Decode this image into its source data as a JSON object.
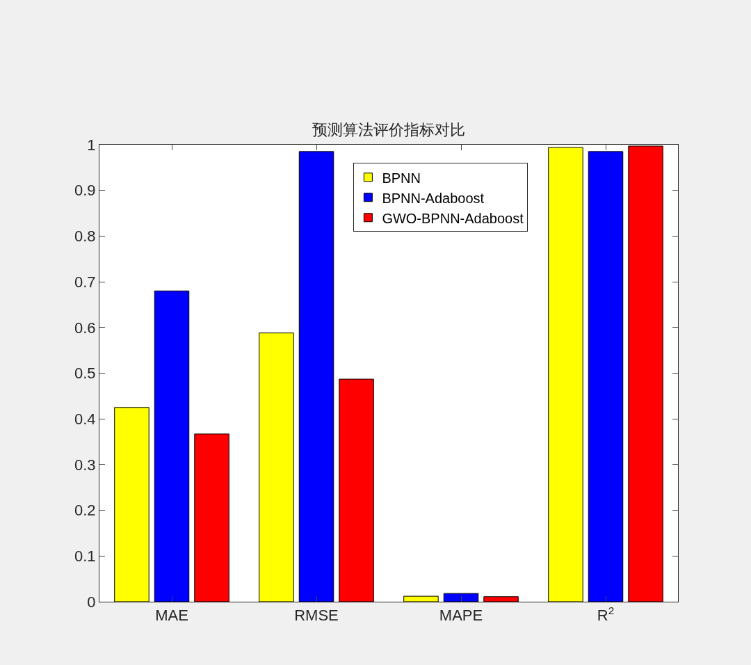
{
  "chart_data": {
    "type": "bar",
    "title": "预测算法评价指标对比",
    "categories": [
      "MAE",
      "RMSE",
      "MAPE",
      "R$^{2}$"
    ],
    "series": [
      {
        "name": "BPNN",
        "color": "#ffff00",
        "values": [
          0.425,
          0.588,
          0.012,
          0.994
        ]
      },
      {
        "name": "BPNN-Adaboost",
        "color": "#0000ff",
        "values": [
          0.68,
          0.985,
          0.018,
          0.985
        ]
      },
      {
        "name": "GWO-BPNN-Adaboost",
        "color": "#ff0000",
        "values": [
          0.367,
          0.487,
          0.011,
          0.997
        ]
      }
    ],
    "ylim": [
      0,
      1
    ],
    "yticks": [
      0,
      0.1,
      0.2,
      0.3,
      0.4,
      0.5,
      0.6,
      0.7,
      0.8,
      0.9,
      1
    ],
    "legend": "top"
  }
}
